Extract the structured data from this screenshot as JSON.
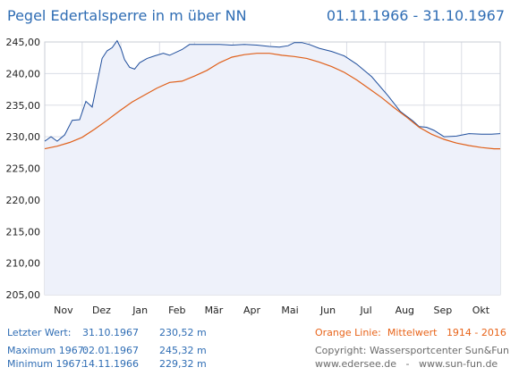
{
  "header": {
    "title": "Pegel Edertalsperre in m über NN",
    "period": "01.11.1966 - 31.10.1967"
  },
  "chart_data": {
    "type": "line",
    "ylim": [
      205,
      245
    ],
    "yticks": [
      "205,00",
      "210,00",
      "215,00",
      "220,00",
      "225,00",
      "230,00",
      "235,00",
      "240,00",
      "245,00"
    ],
    "xlim": [
      0,
      365
    ],
    "months": [
      "Nov",
      "Dez",
      "Jan",
      "Feb",
      "Mär",
      "Apr",
      "Mai",
      "Jun",
      "Jul",
      "Aug",
      "Sep",
      "Okt"
    ],
    "month_starts": [
      0,
      30,
      61,
      92,
      120,
      151,
      181,
      212,
      242,
      273,
      304,
      334
    ],
    "grid": true,
    "colors": {
      "level": "#1f4e9c",
      "mean": "#e0601a",
      "fill": "#eef1fa",
      "grid": "#dadde6"
    },
    "series": [
      {
        "name": "",
        "key": "level",
        "x": [
          0,
          5,
          10,
          16,
          22,
          28,
          33,
          38,
          42,
          46,
          50,
          54,
          58,
          61,
          64,
          68,
          72,
          76,
          82,
          88,
          95,
          100,
          110,
          116,
          122,
          130,
          140,
          150,
          160,
          170,
          180,
          188,
          195,
          200,
          206,
          212,
          220,
          230,
          240,
          250,
          262,
          275,
          285,
          295,
          300,
          306,
          312,
          320,
          330,
          340,
          350,
          358,
          365
        ],
        "values": [
          229.3,
          230.0,
          229.3,
          230.3,
          232.6,
          232.7,
          235.6,
          234.7,
          238.6,
          242.4,
          243.6,
          244.1,
          245.2,
          244.0,
          242.2,
          241.0,
          240.7,
          241.7,
          242.4,
          242.8,
          243.2,
          242.9,
          243.8,
          244.6,
          244.6,
          244.6,
          244.6,
          244.5,
          244.6,
          244.5,
          244.3,
          244.2,
          244.4,
          244.9,
          244.9,
          244.6,
          244.0,
          243.5,
          242.8,
          241.5,
          239.5,
          236.5,
          234.0,
          232.5,
          231.6,
          231.5,
          231.0,
          230.0,
          230.1,
          230.5,
          230.4,
          230.4,
          230.5
        ]
      },
      {
        "name": "Mittelwert",
        "key": "mean",
        "x": [
          0,
          10,
          20,
          30,
          40,
          50,
          60,
          70,
          80,
          90,
          100,
          110,
          120,
          130,
          140,
          150,
          160,
          170,
          180,
          190,
          200,
          210,
          220,
          230,
          240,
          250,
          260,
          270,
          280,
          290,
          300,
          310,
          320,
          330,
          340,
          350,
          360,
          365
        ],
        "values": [
          228.1,
          228.5,
          229.1,
          229.9,
          231.2,
          232.6,
          234.1,
          235.5,
          236.6,
          237.7,
          238.6,
          238.8,
          239.6,
          240.5,
          241.7,
          242.6,
          243.0,
          243.2,
          243.2,
          242.9,
          242.7,
          242.4,
          241.8,
          241.1,
          240.2,
          239.0,
          237.6,
          236.2,
          234.6,
          233.1,
          231.5,
          230.4,
          229.6,
          229.0,
          228.6,
          228.3,
          228.1,
          228.1
        ]
      }
    ]
  },
  "info": {
    "last": {
      "label": "Letzter Wert:",
      "date": "31.10.1967",
      "value": "230,52 m"
    },
    "max": {
      "label": "Maximum 1967:",
      "date": "02.01.1967",
      "value": "245,32 m"
    },
    "min": {
      "label": "Minimum  1967:",
      "date": "14.11.1966",
      "value": "229,32 m"
    },
    "legend": "Orange Linie:",
    "legend_text": "Mittelwert",
    "legend_range": "1914 - 2016",
    "copyright": "Copyright: Wassersportcenter Sun&Fun",
    "site1": "www.edersee.de",
    "sep": "-",
    "site2": "www.sun-fun.de"
  }
}
